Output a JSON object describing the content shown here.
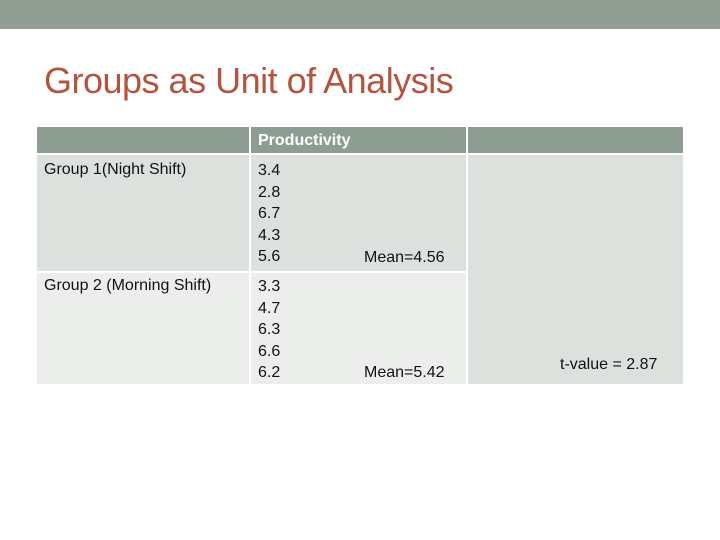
{
  "slide": {
    "title": "Groups as Unit of Analysis"
  },
  "table": {
    "header": "Productivity",
    "rows": [
      {
        "label": "Group 1(Night Shift)",
        "values": [
          "3.4",
          "2.8",
          "6.7",
          "4.3",
          "5.6"
        ],
        "mean": "Mean=4.56"
      },
      {
        "label": "Group 2 (Morning Shift)",
        "values": [
          "3.3",
          "4.7",
          "6.3",
          "6.6",
          "6.2"
        ],
        "mean": "Mean=5.42"
      }
    ],
    "t_value": "t-value = 2.87"
  },
  "colors": {
    "title": "#b5533c",
    "header": "#8e9d92",
    "top_bar": "#909e93",
    "row_light": "#dde1de",
    "row_alt": "#eceeec"
  }
}
